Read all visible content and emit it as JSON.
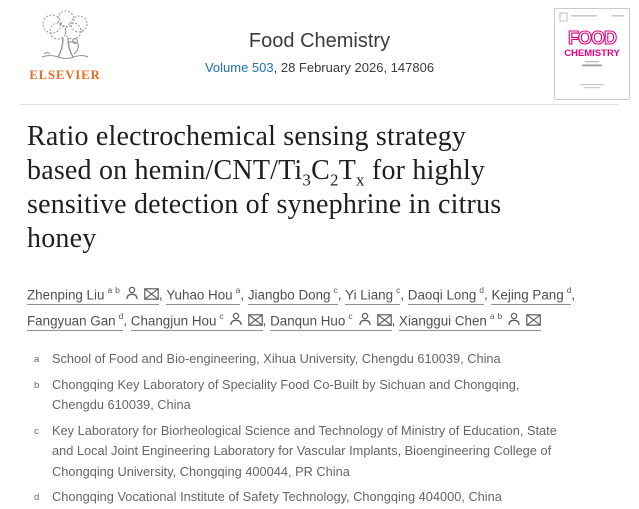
{
  "header": {
    "publisher_wordmark": "ELSEVIER",
    "journal_title": "Food Chemistry",
    "volume_link": "Volume 503",
    "issue_info": ", 28 February 2026, 147806"
  },
  "cover": {
    "title_line1": "FOOD",
    "title_line2": "CHEMISTRY"
  },
  "article": {
    "title_plain": "Ratio electrochemical sensing strategy based on hemin/CNT/Ti3C2Tx for highly sensitive detection of synephrine in citrus honey",
    "title_segments": [
      {
        "t": "Ratio electrochemical sensing strategy"
      },
      {
        "t": "based on hemin/CNT/Ti",
        "br": true
      },
      {
        "t": "3",
        "sub": true
      },
      {
        "t": "C"
      },
      {
        "t": "2",
        "sub": true
      },
      {
        "t": "T"
      },
      {
        "t": "x",
        "sub": true
      },
      {
        "t": " for highly"
      },
      {
        "t": "sensitive detection of synephrine in citrus",
        "br": true
      },
      {
        "t": "honey",
        "br": true
      }
    ]
  },
  "authors": [
    {
      "name": "Zhenping Liu",
      "sups": [
        "a",
        "b"
      ],
      "person": true,
      "mail": true
    },
    {
      "name": "Yuhao Hou",
      "sups": [
        "a"
      ]
    },
    {
      "name": "Jiangbo Dong",
      "sups": [
        "c"
      ]
    },
    {
      "name": "Yi Liang",
      "sups": [
        "c"
      ]
    },
    {
      "name": "Daoqi Long",
      "sups": [
        "d"
      ]
    },
    {
      "name": "Kejing Pang",
      "sups": [
        "d"
      ],
      "break_after": true
    },
    {
      "name": "Fangyuan Gan",
      "sups": [
        "d"
      ]
    },
    {
      "name": "Changjun Hou",
      "sups": [
        "c"
      ],
      "person": true,
      "mail": true
    },
    {
      "name": "Danqun Huo",
      "sups": [
        "c"
      ],
      "person": true,
      "mail": true
    },
    {
      "name": "Xianggui Chen",
      "sups": [
        "a",
        "b"
      ],
      "person": true,
      "mail": true
    }
  ],
  "affiliations": [
    {
      "label": "a",
      "text": "School of Food and Bio-engineering, Xihua University, Chengdu 610039, China"
    },
    {
      "label": "b",
      "text": "Chongqing Key Laboratory of Speciality Food Co-Built by Sichuan and Chongqing, Chengdu 610039, China"
    },
    {
      "label": "c",
      "text": "Key Laboratory for Biorheological Science and Technology of Ministry of Education, State and Local Joint Engineering Laboratory for Vascular Implants, Bioengineering College of Chongqing University, Chongqing 400044, PR China"
    },
    {
      "label": "d",
      "text": "Chongqing Vocational Institute of Safety Technology, Chongqing 404000, China"
    }
  ],
  "colors": {
    "link_blue": "#1e73ae",
    "elsevier_orange": "#eb6a1e",
    "cover_magenta": "#e6007e",
    "divider_gray": "#dddddd",
    "title_text": "#1f1f1f",
    "author_text": "#4f4f4f",
    "affiliation_text": "#666666"
  }
}
